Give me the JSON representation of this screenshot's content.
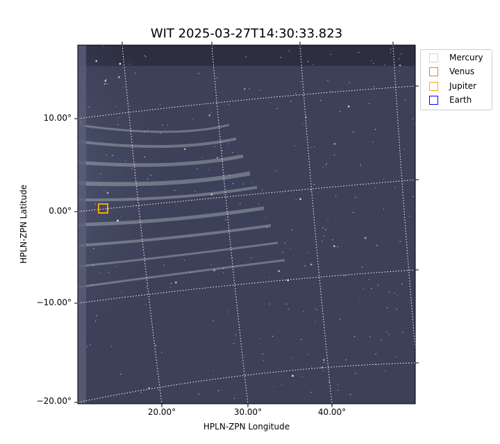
{
  "chart_data": {
    "type": "heatmap",
    "title": "WIT 2025-03-27T14:30:33.823",
    "xlabel": "HPLN-ZPN Longitude",
    "ylabel": "HPLN-ZPN Latitude",
    "xticks": [
      "20.00°",
      "30.00°",
      "40.00°"
    ],
    "yticks": [
      "10.00°",
      "0.00°",
      "−10.00°",
      "−20.00°"
    ],
    "xlim": [
      10.5,
      49.5
    ],
    "ylim": [
      -20.2,
      17.6
    ],
    "grid": true,
    "colormap": "bone",
    "legend_position": "upper-right-outside",
    "legend": [
      {
        "name": "Mercury",
        "color": "#d3d3d3"
      },
      {
        "name": "Venus",
        "color": "#cd853f"
      },
      {
        "name": "Jupiter",
        "color": "#ffa500"
      },
      {
        "name": "Earth",
        "color": "#0000ff"
      }
    ],
    "markers": [
      {
        "name": "Jupiter",
        "lon": 13.0,
        "lat": 0.3,
        "color": "#ffa500"
      }
    ]
  }
}
